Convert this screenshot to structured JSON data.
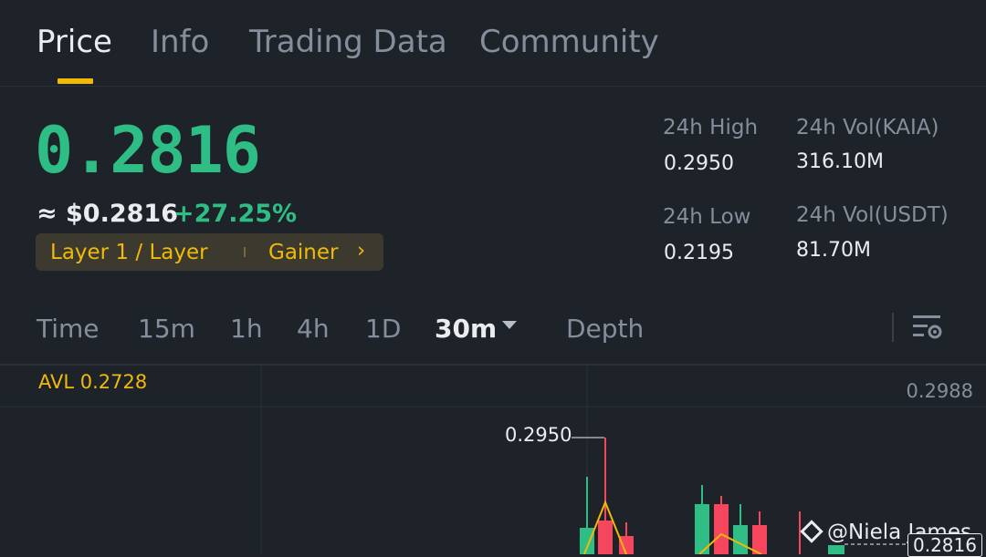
{
  "tabs": [
    "Price",
    "Info",
    "Trading Data",
    "Community"
  ],
  "active_tab": "Price",
  "price": {
    "last": "0.2816",
    "usd": "≈ $0.2816",
    "change": "+27.25%"
  },
  "tag": {
    "left": "Layer 1 / Layer",
    "right": "Gainer"
  },
  "stats": {
    "high_label": "24h High",
    "high_value": "0.2950",
    "low_label": "24h Low",
    "low_value": "0.2195",
    "vol_base_label": "24h Vol(KAIA)",
    "vol_base_value": "316.10M",
    "vol_quote_label": "24h Vol(USDT)",
    "vol_quote_value": "81.70M"
  },
  "timeframes": {
    "time": "Time",
    "m15": "15m",
    "h1": "1h",
    "h4": "4h",
    "d1": "1D",
    "m30": "30m",
    "depth": "Depth"
  },
  "chart": {
    "avl": "AVL 0.2728",
    "axis_top": "0.2988",
    "high_marker": "0.2950",
    "current_price": "0.2816",
    "watermark": "@Niela James"
  },
  "colors": {
    "background": "#1e2329",
    "up": "#2ebd85",
    "down": "#f6465d",
    "accent": "#f0b90b"
  }
}
